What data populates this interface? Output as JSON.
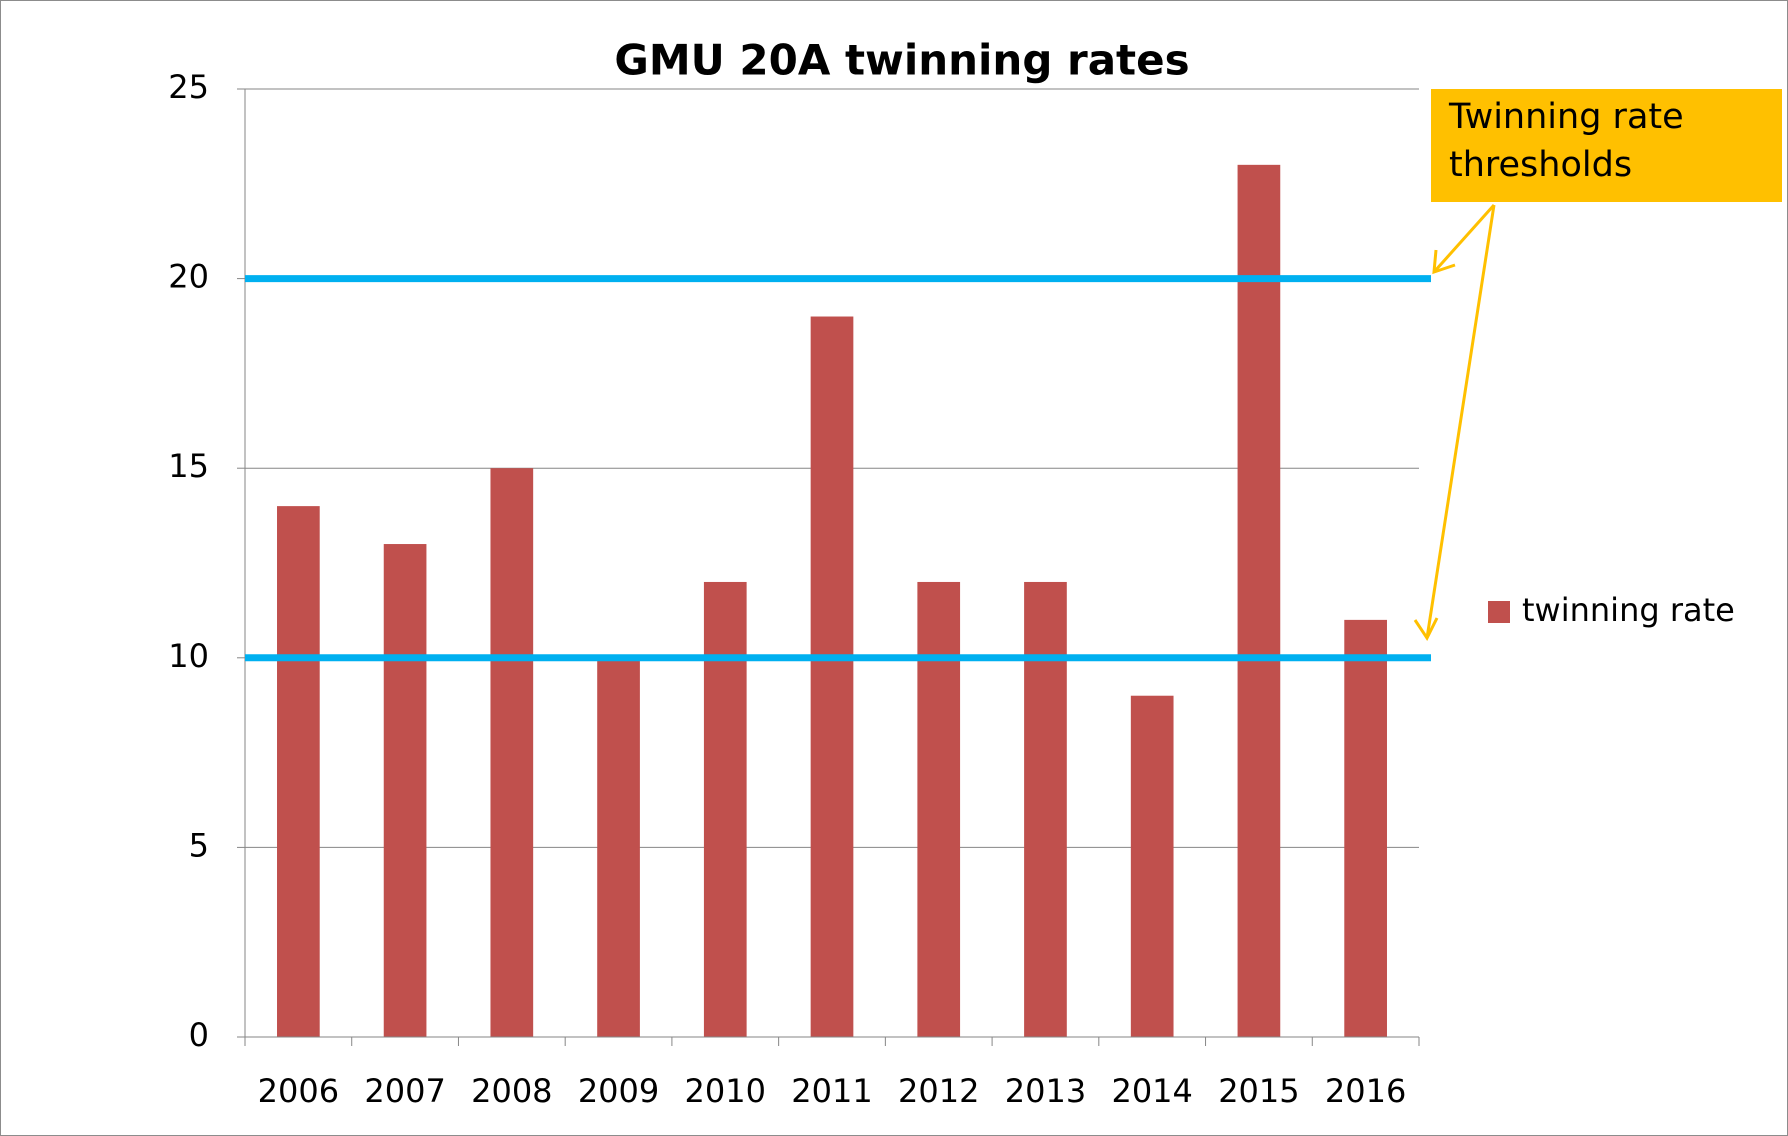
{
  "chart_data": {
    "type": "bar",
    "title": "GMU 20A twinning rates",
    "categories": [
      "2006",
      "2007",
      "2008",
      "2009",
      "2010",
      "2011",
      "2012",
      "2013",
      "2014",
      "2015",
      "2016"
    ],
    "series": [
      {
        "name": "twinning rate",
        "color": "#c0504d",
        "values": [
          14,
          13,
          15,
          10,
          12,
          19,
          12,
          12,
          9,
          23,
          11
        ]
      }
    ],
    "ylim": [
      0,
      25
    ],
    "yticks": [
      0,
      5,
      10,
      15,
      20,
      25
    ],
    "grid": true,
    "legend": "right",
    "thresholds": {
      "values": [
        20,
        10
      ],
      "color": "#00b0f0"
    },
    "annotation": {
      "text": "Twinning rate thresholds",
      "color": "#ffc000"
    }
  }
}
